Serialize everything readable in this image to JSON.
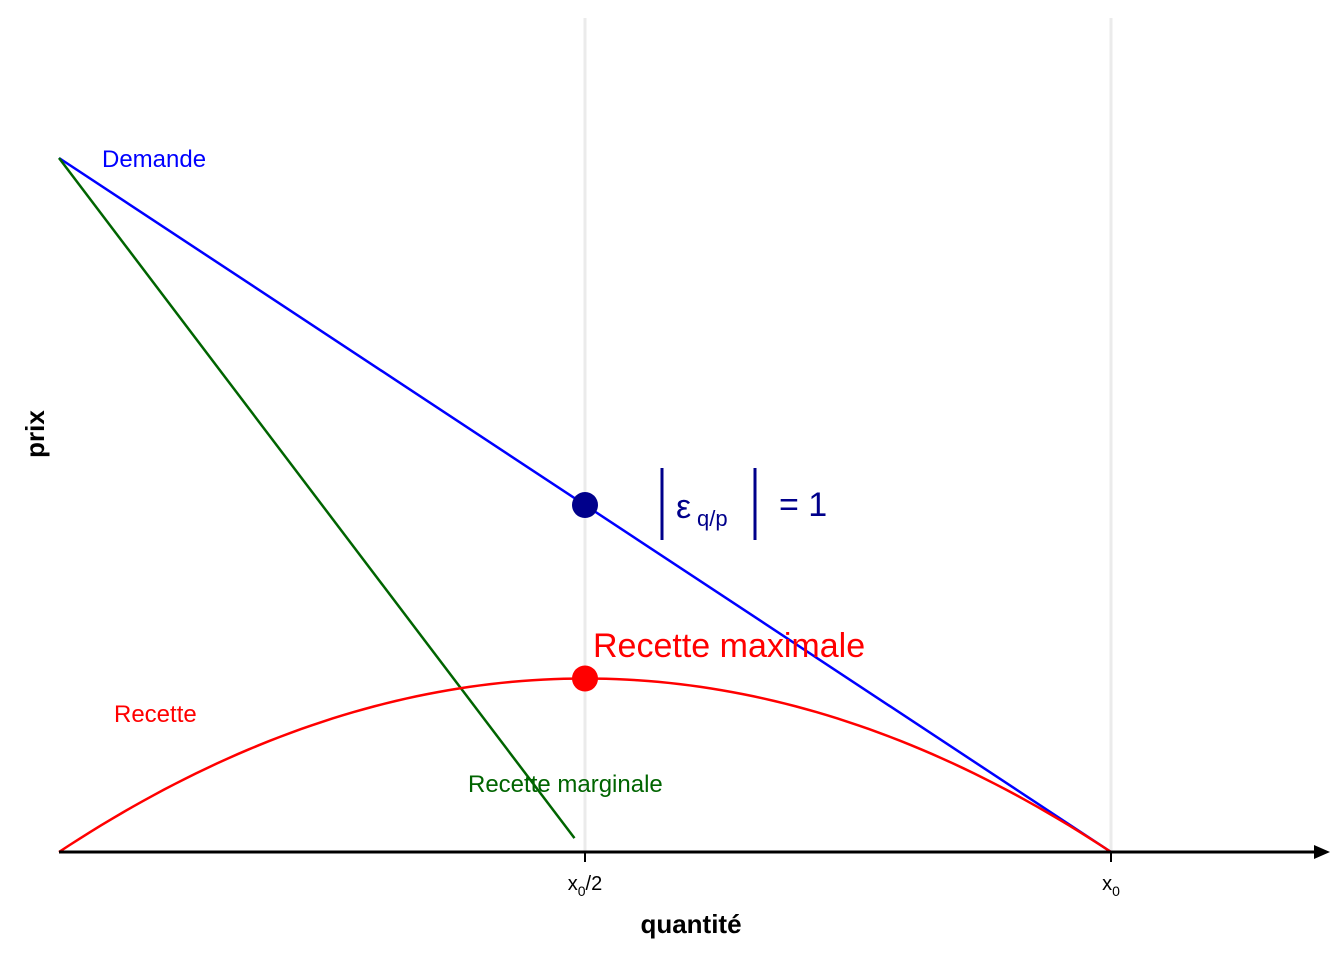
{
  "chart_data": {
    "type": "line",
    "xlabel": "quantité",
    "ylabel": "prix",
    "x_ticks": [
      {
        "value": 0.5,
        "base": "x",
        "sub": "0",
        "suffix": "/2"
      },
      {
        "value": 1.0,
        "base": "x",
        "sub": "0",
        "suffix": ""
      }
    ],
    "xlim": [
      0,
      1.24
    ],
    "ylim": [
      0,
      1
    ],
    "grid": "vertical lines at x ticks",
    "series": [
      {
        "name": "Demande",
        "color": "#0000ff",
        "kind": "line",
        "x": [
          0,
          1
        ],
        "y": [
          1,
          0
        ]
      },
      {
        "name": "Recette marginale",
        "color": "#006400",
        "kind": "line",
        "x": [
          0,
          0.49
        ],
        "y": [
          1,
          0.02
        ]
      },
      {
        "name": "Recette",
        "color": "#ff0000",
        "kind": "curve",
        "x": [
          0,
          0.25,
          0.5,
          0.75,
          1
        ],
        "y": [
          0,
          0.1875,
          0.25,
          0.1875,
          0
        ]
      }
    ],
    "points": [
      {
        "name": "elasticity-point",
        "x": 0.5,
        "y": 0.5,
        "color": "#00008b"
      },
      {
        "name": "max-revenue-point",
        "x": 0.5,
        "y": 0.25,
        "color": "#ff0000"
      }
    ],
    "annotations": {
      "elasticity": {
        "symbol": "ε",
        "sub": "q/p",
        "rhs": "= 1",
        "color": "#00008b"
      },
      "max_revenue": {
        "text": "Recette maximale",
        "color": "#ff0000"
      }
    },
    "labels": {
      "demande": "Demande",
      "recette": "Recette",
      "recette_marginale": "Recette marginale"
    }
  }
}
